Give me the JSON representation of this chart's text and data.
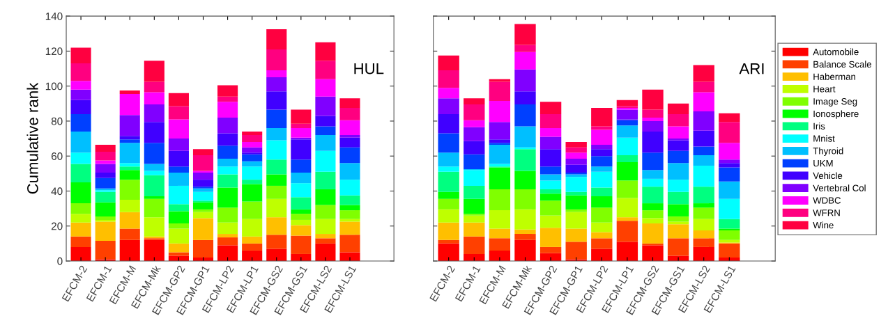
{
  "chart_data": [
    {
      "type": "bar",
      "stacked": true,
      "ylabel": "Cumulative rank",
      "annotations": [
        "HUL"
      ],
      "legend": "right",
      "ylim": [
        0,
        140
      ],
      "yticks": [
        0,
        20,
        40,
        60,
        80,
        100,
        120,
        140
      ],
      "categories": [
        "EFCM-2",
        "EFCM-1",
        "EFCM-M",
        "EFCM-Mk",
        "EFCM-GP2",
        "EFCM-GP1",
        "EFCM-LP2",
        "EFCM-LP1",
        "EFCM-GS2",
        "EFCM-GS1",
        "EFCM-LS2",
        "EFCM-LS1"
      ],
      "series": [
        {
          "name": "Automobile",
          "color": "#ff0000",
          "values": [
            8,
            1,
            12,
            12,
            3,
            2,
            9,
            6,
            7,
            4,
            10,
            5
          ]
        },
        {
          "name": "Balance Scale",
          "color": "#ff4000",
          "values": [
            6,
            10.5,
            6.5,
            1,
            2,
            10,
            4.5,
            4,
            8,
            10.5,
            3,
            10
          ]
        },
        {
          "name": "Haberman",
          "color": "#ffbf00",
          "values": [
            8,
            11,
            9.5,
            1,
            5,
            12.5,
            2,
            4,
            10,
            6,
            2.5,
            7.5
          ]
        },
        {
          "name": "Heart",
          "color": "#bfff00",
          "values": [
            5,
            1,
            7,
            11,
            8.5,
            3.5,
            6.5,
            10,
            10.5,
            3,
            8.5,
            1.5
          ]
        },
        {
          "name": "Image Seg",
          "color": "#80ff00",
          "values": [
            6,
            2,
            11.5,
            10.5,
            3,
            1.5,
            8.5,
            10,
            7.5,
            3.5,
            8,
            5
          ]
        },
        {
          "name": "Ionosphere",
          "color": "#00ff00",
          "values": [
            12,
            8,
            5.5,
            1.5,
            7,
            4,
            11.5,
            10,
            6.5,
            2.5,
            9,
            3
          ]
        },
        {
          "name": "Iris",
          "color": "#00ff80",
          "values": [
            10.5,
            6,
            2,
            12,
            4,
            1,
            7.5,
            2.5,
            8.5,
            7,
            10,
            5.5
          ]
        },
        {
          "name": "Mnist",
          "color": "#00ffff",
          "values": [
            6.5,
            1,
            2,
            2.5,
            10.5,
            5,
            4.5,
            7.5,
            11,
            8,
            12,
            9
          ]
        },
        {
          "name": "Thyroid",
          "color": "#00bfff",
          "values": [
            12,
            1,
            11.5,
            4,
            7.5,
            2,
            4.5,
            3,
            7,
            6,
            9,
            9.5
          ]
        },
        {
          "name": "UKM",
          "color": "#0040ff",
          "values": [
            10,
            6,
            2,
            12,
            3.5,
            1,
            7.5,
            4,
            10.5,
            7.5,
            5,
            9
          ]
        },
        {
          "name": "Vehicle",
          "color": "#4000ff",
          "values": [
            8,
            3,
            2,
            12,
            9,
            4,
            7,
            1,
            10.5,
            11.5,
            6,
            5.5
          ]
        },
        {
          "name": "Vertebral Col",
          "color": "#8000ff",
          "values": [
            6,
            5,
            12,
            10,
            7,
            4,
            9,
            3,
            8,
            1,
            11,
            1.5
          ]
        },
        {
          "name": "WDBC",
          "color": "#ff00ff",
          "values": [
            5,
            2,
            12,
            7,
            11,
            1,
            9,
            3,
            4,
            5.5,
            10,
            8.5
          ]
        },
        {
          "name": "WFRN",
          "color": "#ff0080",
          "values": [
            10,
            5,
            0,
            6,
            7.5,
            9,
            3,
            4,
            12,
            2.5,
            10.5,
            7
          ]
        },
        {
          "name": "Wine",
          "color": "#ff0040",
          "values": [
            9,
            4,
            2,
            12,
            7.5,
            3.5,
            6.5,
            2,
            11.5,
            8,
            10.5,
            5.5
          ]
        }
      ]
    },
    {
      "type": "bar",
      "stacked": true,
      "annotations": [
        "ARI"
      ],
      "tick_labels": "x",
      "ylim": [
        0,
        140
      ],
      "yticks": [
        0,
        20,
        40,
        60,
        80,
        100,
        120,
        140
      ],
      "categories": [
        "EFCM-2",
        "EFCM-1",
        "EFCM-M",
        "EFCM-Mk",
        "EFCM-GP2",
        "EFCM-GP1",
        "EFCM-LP2",
        "EFCM-LP1",
        "EFCM-GS2",
        "EFCM-GS1",
        "EFCM-LS2",
        "EFCM-LS1"
      ],
      "series": [
        {
          "color": "#ff0000",
          "values": [
            10,
            4,
            6,
            12,
            4.5,
            1,
            7,
            11,
            9,
            3,
            8,
            2
          ]
        },
        {
          "color": "#ff4000",
          "values": [
            2,
            10,
            7,
            3.5,
            3.5,
            10,
            6,
            12,
            1,
            10,
            5,
            8
          ]
        },
        {
          "color": "#ffbf00",
          "values": [
            10,
            8,
            5.5,
            2.5,
            11,
            7.5,
            3.5,
            2,
            11.5,
            8,
            4.5,
            0.5
          ]
        },
        {
          "color": "#bfff00",
          "values": [
            7.5,
            4,
            10.5,
            11.5,
            7,
            9.5,
            5.5,
            11,
            3,
            1.5,
            6.5,
            1.5
          ]
        },
        {
          "color": "#80ff00",
          "values": [
            6,
            1,
            12,
            11.5,
            8.5,
            1.5,
            8.5,
            10,
            4.5,
            3,
            6.5,
            5.5
          ]
        },
        {
          "color": "#00ff00",
          "values": [
            4,
            8.5,
            12.5,
            10.5,
            4,
            8,
            6.5,
            10.5,
            4,
            7,
            2.5,
            1
          ]
        },
        {
          "color": "#00ff80",
          "values": [
            11.5,
            7.5,
            0.5,
            12.5,
            2.5,
            2,
            5,
            4,
            9.5,
            7,
            9.5,
            5.5
          ]
        },
        {
          "color": "#00ffff",
          "values": [
            3,
            9,
            1.5,
            1,
            5,
            8.5,
            9,
            10,
            4.5,
            7,
            12,
            11.5
          ]
        },
        {
          "color": "#00bfff",
          "values": [
            8,
            0.5,
            11,
            12,
            3.5,
            1.5,
            3,
            7,
            5,
            9.5,
            6,
            10
          ]
        },
        {
          "color": "#0040ff",
          "values": [
            11,
            8.5,
            1,
            12.5,
            4.5,
            1,
            6,
            3,
            10,
            7,
            5,
            8
          ]
        },
        {
          "color": "#4000ff",
          "values": [
            11,
            7.5,
            2,
            7.5,
            10,
            4.5,
            4,
            0.5,
            12,
            6,
            9,
            2.5
          ]
        },
        {
          "color": "#8000ff",
          "values": [
            9,
            8,
            10,
            12.5,
            7,
            3.5,
            2.5,
            5.5,
            6,
            1,
            11,
            2
          ]
        },
        {
          "color": "#ff00ff",
          "values": [
            6,
            4,
            12,
            10,
            5,
            3.5,
            8.5,
            1,
            2,
            7,
            11,
            9.5
          ]
        },
        {
          "color": "#ff0080",
          "values": [
            10,
            9,
            11,
            4,
            8,
            3,
            2,
            1,
            4.5,
            7,
            6,
            12
          ]
        },
        {
          "color": "#ff0040",
          "values": [
            8.5,
            3.5,
            1.5,
            12,
            7,
            3,
            10.5,
            3.5,
            11.5,
            6,
            9.5,
            5
          ]
        }
      ]
    }
  ]
}
